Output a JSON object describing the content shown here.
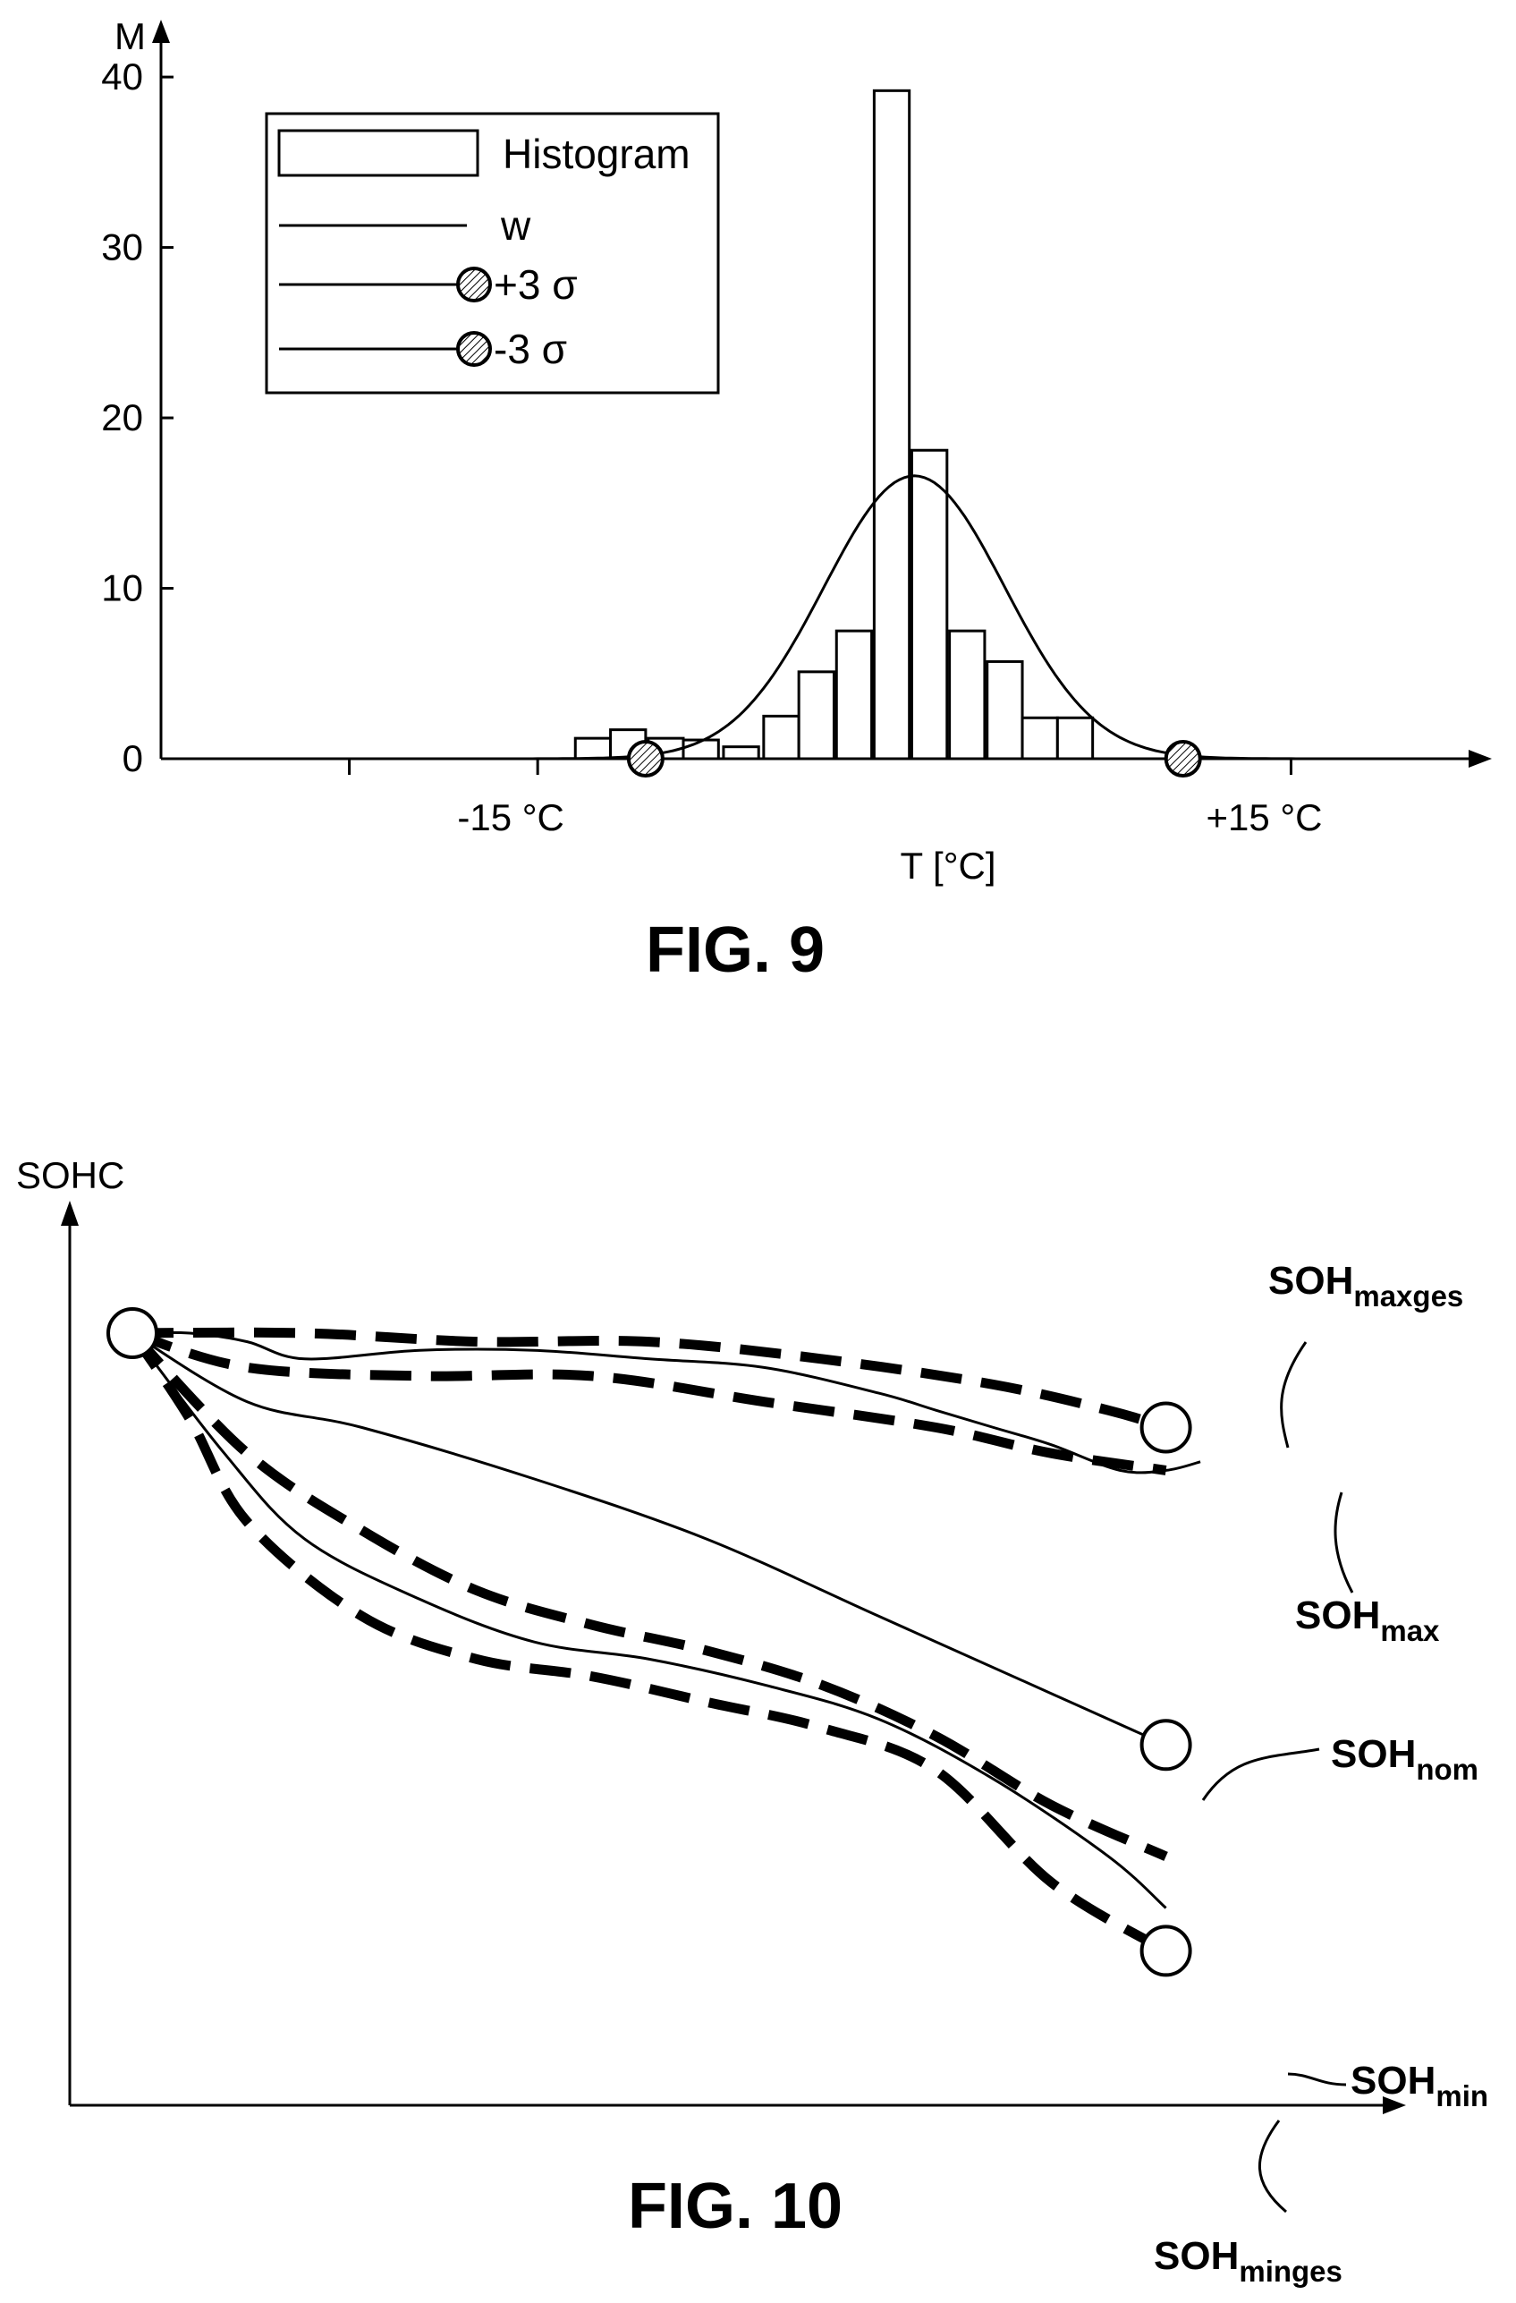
{
  "figures": {
    "fig9": {
      "caption": "FIG. 9"
    },
    "fig10": {
      "caption": "FIG. 10"
    }
  },
  "chart_data": [
    {
      "type": "bar",
      "title": "",
      "xlabel": "T [°C]",
      "ylabel": "M",
      "y_ticks": [
        "0",
        "10",
        "20",
        "30",
        "40"
      ],
      "x_tick_labels": [
        "-15 °C",
        "+15 °C"
      ],
      "xlim": [
        -30,
        22
      ],
      "ylim": [
        0,
        42
      ],
      "bar_width": 1.4,
      "bars": [
        {
          "x": -12.8,
          "value": 1.2
        },
        {
          "x": -11.4,
          "value": 1.7
        },
        {
          "x": -9.9,
          "value": 1.2
        },
        {
          "x": -8.5,
          "value": 1.1
        },
        {
          "x": -6.9,
          "value": 0.7
        },
        {
          "x": -5.3,
          "value": 2.5
        },
        {
          "x": -3.9,
          "value": 5.1
        },
        {
          "x": -2.4,
          "value": 7.5
        },
        {
          "x": -0.9,
          "value": 39.2
        },
        {
          "x": 0.6,
          "value": 18.1
        },
        {
          "x": 2.1,
          "value": 7.5
        },
        {
          "x": 3.6,
          "value": 5.7
        },
        {
          "x": 5.0,
          "value": 2.4
        },
        {
          "x": 6.4,
          "value": 2.4
        }
      ],
      "gaussian_w": {
        "mu": 0,
        "sigma": 3.6,
        "peak": 16.6
      },
      "sigma_markers": [
        {
          "name": "-3 σ",
          "x": -10.7,
          "y": 0
        },
        {
          "name": "+3 σ",
          "x": 10.7,
          "y": 0
        }
      ],
      "legend": {
        "placement": "top-left",
        "entries": [
          "Histogram",
          "w",
          "+3 σ",
          "-3 σ"
        ]
      },
      "grid": false
    },
    {
      "type": "line",
      "title": "",
      "ylabel": "SOHC",
      "xlabel": "",
      "xlim": [
        0,
        100
      ],
      "ylim": [
        0,
        100
      ],
      "series": [
        {
          "name": "SOH_max",
          "style": "solid",
          "points": [
            [
              0,
              90
            ],
            [
              5,
              90
            ],
            [
              10,
              89
            ],
            [
              15,
              87
            ],
            [
              25,
              88
            ],
            [
              35,
              88
            ],
            [
              45,
              87
            ],
            [
              55,
              86
            ],
            [
              65,
              83
            ],
            [
              70,
              81
            ],
            [
              75,
              79
            ],
            [
              80,
              77
            ],
            [
              86,
              74
            ],
            [
              90,
              74
            ],
            [
              93,
              75
            ]
          ]
        },
        {
          "style": "dashed",
          "points": [
            [
              0,
              90
            ],
            [
              15,
              90
            ],
            [
              30,
              89
            ],
            [
              45,
              89
            ],
            [
              60,
              87
            ],
            [
              75,
              84
            ],
            [
              85,
              81
            ],
            [
              90,
              79
            ]
          ]
        },
        {
          "style": "dashed",
          "points": [
            [
              0,
              90
            ],
            [
              10,
              86
            ],
            [
              25,
              85
            ],
            [
              40,
              85
            ],
            [
              55,
              82
            ],
            [
              70,
              79
            ],
            [
              80,
              76
            ],
            [
              90,
              74
            ]
          ]
        },
        {
          "name": "SOH_nom",
          "style": "solid",
          "points": [
            [
              0,
              90
            ],
            [
              10,
              82
            ],
            [
              20,
              79
            ],
            [
              35,
              73
            ],
            [
              50,
              66
            ],
            [
              65,
              57
            ],
            [
              80,
              48
            ],
            [
              90,
              42
            ]
          ]
        },
        {
          "style": "dashed",
          "points": [
            [
              0,
              90
            ],
            [
              10,
              76
            ],
            [
              20,
              67
            ],
            [
              30,
              60
            ],
            [
              40,
              56
            ],
            [
              50,
              53
            ],
            [
              60,
              49
            ],
            [
              70,
              43
            ],
            [
              80,
              35
            ],
            [
              90,
              29
            ]
          ]
        },
        {
          "name": "SOH_min",
          "style": "solid",
          "points": [
            [
              0,
              90
            ],
            [
              8,
              76
            ],
            [
              15,
              66
            ],
            [
              25,
              59
            ],
            [
              35,
              54
            ],
            [
              45,
              52
            ],
            [
              55,
              49
            ],
            [
              65,
              45
            ],
            [
              75,
              38
            ],
            [
              85,
              29
            ],
            [
              90,
              23
            ]
          ]
        },
        {
          "style": "dashed",
          "points": [
            [
              0,
              90
            ],
            [
              5,
              80
            ],
            [
              10,
              68
            ],
            [
              20,
              57
            ],
            [
              30,
              52
            ],
            [
              40,
              50
            ],
            [
              50,
              47
            ],
            [
              60,
              44
            ],
            [
              70,
              39
            ],
            [
              80,
              26
            ],
            [
              90,
              18
            ]
          ]
        }
      ],
      "markers": [
        {
          "label": "start",
          "x": 0,
          "y": 90
        },
        {
          "label": "SOH_maxges",
          "x": 90,
          "y": 79
        },
        {
          "label": "SOH_nom",
          "x": 90,
          "y": 42
        },
        {
          "label": "SOH_minges",
          "x": 90,
          "y": 18
        }
      ],
      "labels": [
        {
          "main": "SOH",
          "sub": "maxges"
        },
        {
          "main": "SOH",
          "sub": "max"
        },
        {
          "main": "SOH",
          "sub": "nom"
        },
        {
          "main": "SOH",
          "sub": "min"
        },
        {
          "main": "SOH",
          "sub": "minges"
        }
      ],
      "grid": false
    }
  ]
}
